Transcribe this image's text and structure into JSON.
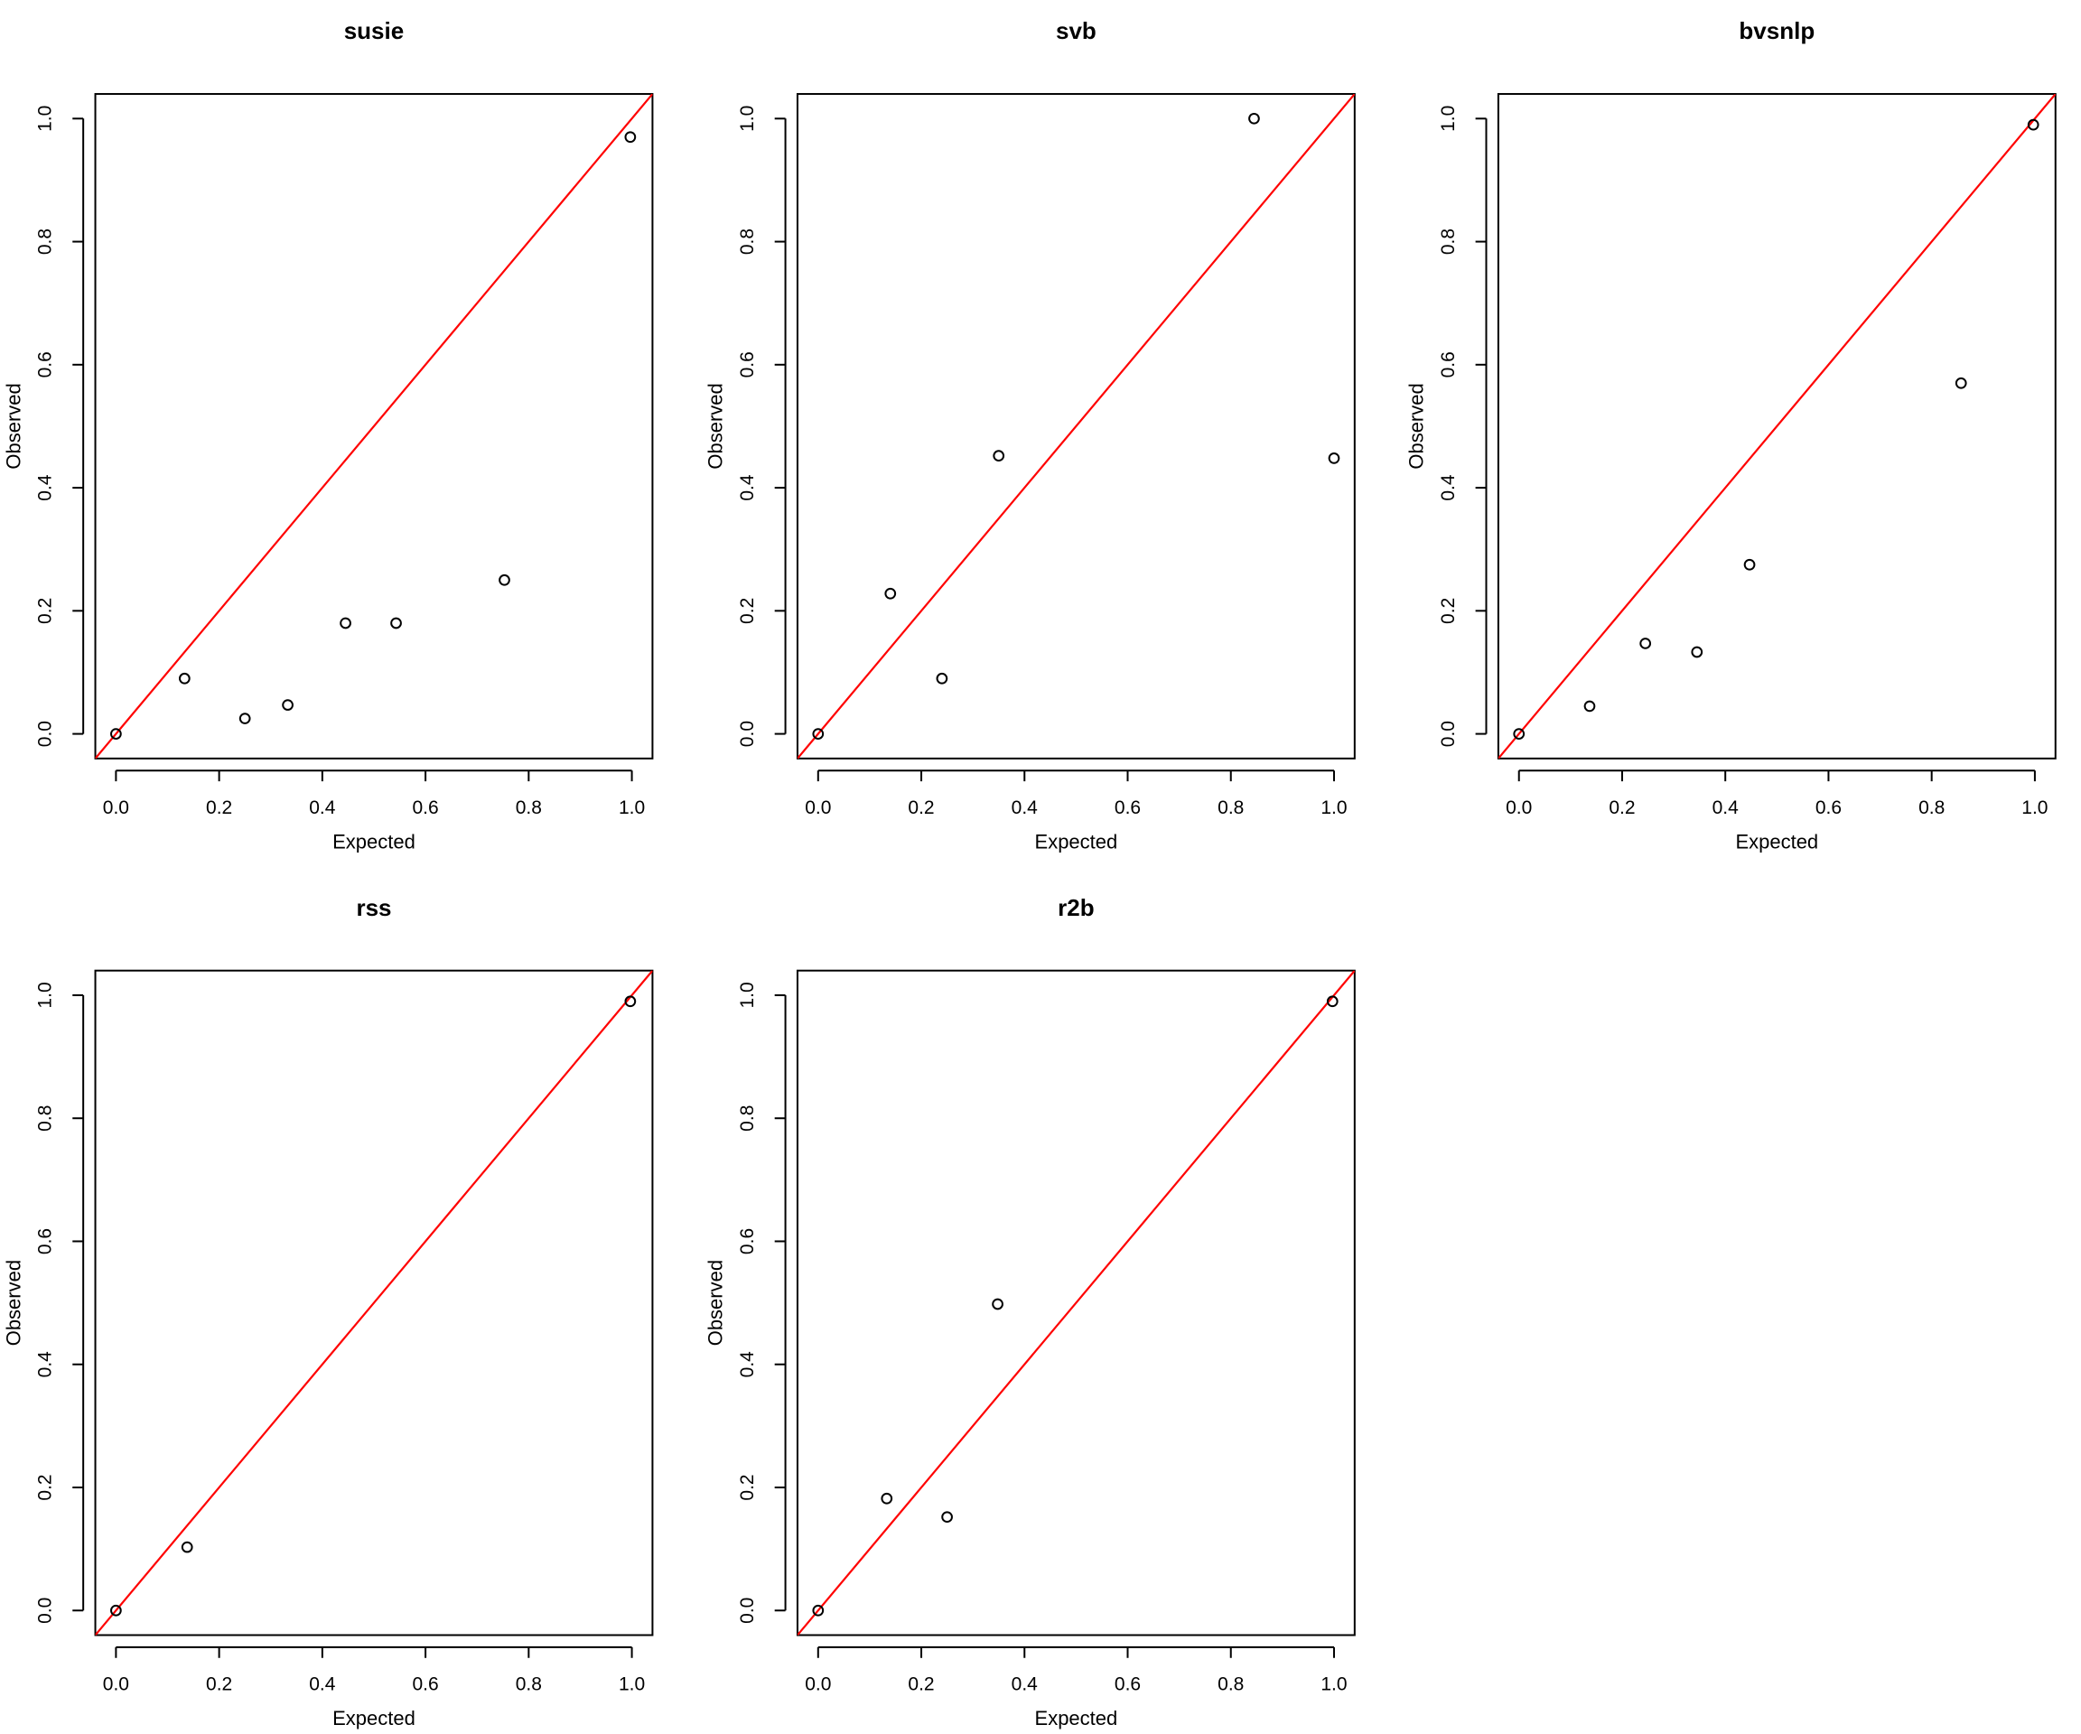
{
  "chart_data": [
    {
      "type": "scatter",
      "title": "susie",
      "xlabel": "Expected",
      "ylabel": "Observed",
      "xlim": [
        -0.04,
        1.04
      ],
      "ylim": [
        -0.04,
        1.04
      ],
      "x_ticks": [
        "0.0",
        "0.2",
        "0.4",
        "0.6",
        "0.8",
        "1.0"
      ],
      "y_ticks": [
        "0.0",
        "0.2",
        "0.4",
        "0.6",
        "0.8",
        "1.0"
      ],
      "reference_line": {
        "type": "identity",
        "color": "#ff0000"
      },
      "points": [
        {
          "x": 0.0,
          "y": 0.0
        },
        {
          "x": 0.133,
          "y": 0.09
        },
        {
          "x": 0.25,
          "y": 0.025
        },
        {
          "x": 0.333,
          "y": 0.047
        },
        {
          "x": 0.445,
          "y": 0.18
        },
        {
          "x": 0.543,
          "y": 0.18
        },
        {
          "x": 0.753,
          "y": 0.25
        },
        {
          "x": 0.997,
          "y": 0.97
        }
      ]
    },
    {
      "type": "scatter",
      "title": "svb",
      "xlabel": "Expected",
      "ylabel": "Observed",
      "xlim": [
        -0.04,
        1.04
      ],
      "ylim": [
        -0.04,
        1.04
      ],
      "x_ticks": [
        "0.0",
        "0.2",
        "0.4",
        "0.6",
        "0.8",
        "1.0"
      ],
      "y_ticks": [
        "0.0",
        "0.2",
        "0.4",
        "0.6",
        "0.8",
        "1.0"
      ],
      "reference_line": {
        "type": "identity",
        "color": "#ff0000"
      },
      "points": [
        {
          "x": 0.0,
          "y": 0.0
        },
        {
          "x": 0.14,
          "y": 0.228
        },
        {
          "x": 0.24,
          "y": 0.09
        },
        {
          "x": 0.35,
          "y": 0.452
        },
        {
          "x": 0.845,
          "y": 1.0
        },
        {
          "x": 1.0,
          "y": 0.448
        }
      ]
    },
    {
      "type": "scatter",
      "title": "bvsnlp",
      "xlabel": "Expected",
      "ylabel": "Observed",
      "xlim": [
        -0.04,
        1.04
      ],
      "ylim": [
        -0.04,
        1.04
      ],
      "x_ticks": [
        "0.0",
        "0.2",
        "0.4",
        "0.6",
        "0.8",
        "1.0"
      ],
      "y_ticks": [
        "0.0",
        "0.2",
        "0.4",
        "0.6",
        "0.8",
        "1.0"
      ],
      "reference_line": {
        "type": "identity",
        "color": "#ff0000"
      },
      "points": [
        {
          "x": 0.0,
          "y": 0.0
        },
        {
          "x": 0.137,
          "y": 0.045
        },
        {
          "x": 0.245,
          "y": 0.147
        },
        {
          "x": 0.345,
          "y": 0.133
        },
        {
          "x": 0.447,
          "y": 0.275
        },
        {
          "x": 0.857,
          "y": 0.57
        },
        {
          "x": 0.997,
          "y": 0.99
        }
      ]
    },
    {
      "type": "scatter",
      "title": "rss",
      "xlabel": "Expected",
      "ylabel": "Observed",
      "xlim": [
        -0.04,
        1.04
      ],
      "ylim": [
        -0.04,
        1.04
      ],
      "x_ticks": [
        "0.0",
        "0.2",
        "0.4",
        "0.6",
        "0.8",
        "1.0"
      ],
      "y_ticks": [
        "0.0",
        "0.2",
        "0.4",
        "0.6",
        "0.8",
        "1.0"
      ],
      "reference_line": {
        "type": "identity",
        "color": "#ff0000"
      },
      "points": [
        {
          "x": 0.0,
          "y": 0.0
        },
        {
          "x": 0.138,
          "y": 0.103
        },
        {
          "x": 0.997,
          "y": 0.99
        }
      ]
    },
    {
      "type": "scatter",
      "title": "r2b",
      "xlabel": "Expected",
      "ylabel": "Observed",
      "xlim": [
        -0.04,
        1.04
      ],
      "ylim": [
        -0.04,
        1.04
      ],
      "x_ticks": [
        "0.0",
        "0.2",
        "0.4",
        "0.6",
        "0.8",
        "1.0"
      ],
      "y_ticks": [
        "0.0",
        "0.2",
        "0.4",
        "0.6",
        "0.8",
        "1.0"
      ],
      "reference_line": {
        "type": "identity",
        "color": "#ff0000"
      },
      "points": [
        {
          "x": 0.0,
          "y": 0.0
        },
        {
          "x": 0.133,
          "y": 0.182
        },
        {
          "x": 0.25,
          "y": 0.152
        },
        {
          "x": 0.348,
          "y": 0.498
        },
        {
          "x": 0.997,
          "y": 0.99
        }
      ]
    }
  ]
}
